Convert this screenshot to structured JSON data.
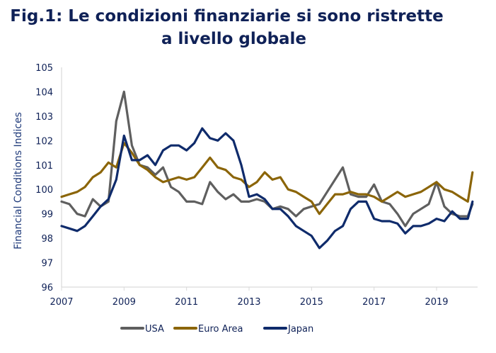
{
  "title_line1": "Fig.1: Le condizioni finanziarie si sono ristrette",
  "title_line2": "a livello globale",
  "chart_data": {
    "type": "line",
    "title": "Fig.1: Le condizioni finanziarie si sono ristrette a livello globale",
    "xlabel": "",
    "ylabel": "Financial Conditions Indices",
    "xlim": [
      2007,
      2020.3
    ],
    "ylim": [
      96,
      105
    ],
    "x_ticks": [
      "2007",
      "2009",
      "2011",
      "2013",
      "2015",
      "2017",
      "2019"
    ],
    "y_ticks": [
      "96",
      "97",
      "98",
      "99",
      "100",
      "101",
      "102",
      "103",
      "104",
      "105"
    ],
    "grid": false,
    "legend_position": "bottom",
    "x": [
      2007.0,
      2007.25,
      2007.5,
      2007.75,
      2008.0,
      2008.25,
      2008.5,
      2008.75,
      2009.0,
      2009.25,
      2009.5,
      2009.75,
      2010.0,
      2010.25,
      2010.5,
      2010.75,
      2011.0,
      2011.25,
      2011.5,
      2011.75,
      2012.0,
      2012.25,
      2012.5,
      2012.75,
      2013.0,
      2013.25,
      2013.5,
      2013.75,
      2014.0,
      2014.25,
      2014.5,
      2014.75,
      2015.0,
      2015.25,
      2015.5,
      2015.75,
      2016.0,
      2016.25,
      2016.5,
      2016.75,
      2017.0,
      2017.25,
      2017.5,
      2017.75,
      2018.0,
      2018.25,
      2018.5,
      2018.75,
      2019.0,
      2019.25,
      2019.5,
      2019.75,
      2020.0,
      2020.15
    ],
    "series": [
      {
        "name": "USA",
        "color": "#5f5f5f",
        "values": [
          99.5,
          99.4,
          99.0,
          98.9,
          99.6,
          99.3,
          99.5,
          102.8,
          104.0,
          101.8,
          101.0,
          100.9,
          100.6,
          100.9,
          100.1,
          99.9,
          99.5,
          99.5,
          99.4,
          100.3,
          99.9,
          99.6,
          99.8,
          99.5,
          99.5,
          99.6,
          99.5,
          99.2,
          99.3,
          99.2,
          98.9,
          99.2,
          99.3,
          99.4,
          99.9,
          100.4,
          100.9,
          99.8,
          99.7,
          99.7,
          100.2,
          99.5,
          99.4,
          99.0,
          98.5,
          99.0,
          99.2,
          99.4,
          100.3,
          99.3,
          99.0,
          98.9,
          98.9,
          99.4
        ]
      },
      {
        "name": "Euro Area",
        "color": "#8b6508",
        "values": [
          99.7,
          99.8,
          99.9,
          100.1,
          100.5,
          100.7,
          101.1,
          100.9,
          101.9,
          101.5,
          101.0,
          100.8,
          100.5,
          100.3,
          100.4,
          100.5,
          100.4,
          100.5,
          100.9,
          101.3,
          100.9,
          100.8,
          100.5,
          100.4,
          100.1,
          100.3,
          100.7,
          100.4,
          100.5,
          100.0,
          99.9,
          99.7,
          99.5,
          99.0,
          99.4,
          99.8,
          99.8,
          99.9,
          99.8,
          99.8,
          99.7,
          99.5,
          99.7,
          99.9,
          99.7,
          99.8,
          99.9,
          100.1,
          100.3,
          100.0,
          99.9,
          99.7,
          99.5,
          100.7
        ]
      },
      {
        "name": "Japan",
        "color": "#0f2b6b",
        "values": [
          98.5,
          98.4,
          98.3,
          98.5,
          98.9,
          99.3,
          99.6,
          100.4,
          102.2,
          101.2,
          101.2,
          101.4,
          101.0,
          101.6,
          101.8,
          101.8,
          101.6,
          101.9,
          102.5,
          102.1,
          102.0,
          102.3,
          102.0,
          101.0,
          99.7,
          99.8,
          99.6,
          99.2,
          99.2,
          98.9,
          98.5,
          98.3,
          98.1,
          97.6,
          97.9,
          98.3,
          98.5,
          99.2,
          99.5,
          99.5,
          98.8,
          98.7,
          98.7,
          98.6,
          98.2,
          98.5,
          98.5,
          98.6,
          98.8,
          98.7,
          99.1,
          98.8,
          98.8,
          99.5
        ]
      }
    ]
  }
}
